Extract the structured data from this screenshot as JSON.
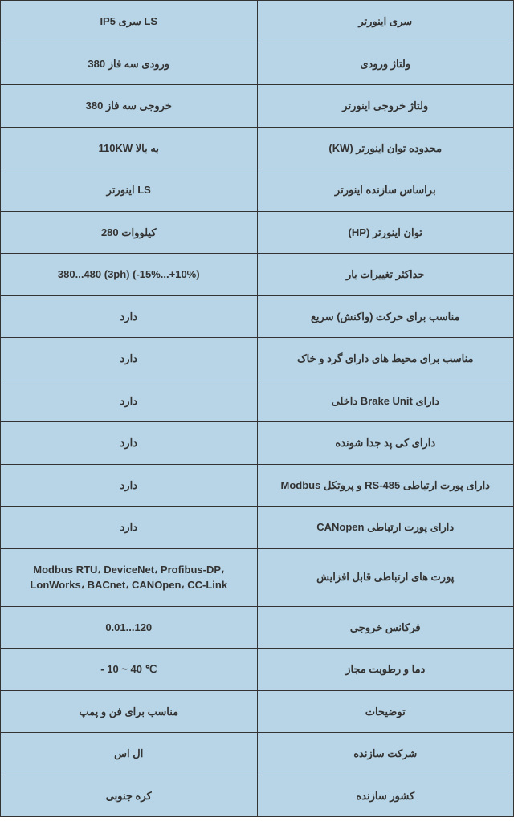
{
  "table": {
    "background_color": "#b7d5e7",
    "border_color": "#333333",
    "text_color": "#333333",
    "font_size": 13,
    "rows": [
      {
        "label": "سری اینورتر",
        "value": "IP5 سری LS"
      },
      {
        "label": "ولتاژ ورودی",
        "value": "ورودی سه فاز 380"
      },
      {
        "label": "ولتاژ خروجی اینورتر",
        "value": "خروجی سه فاز 380"
      },
      {
        "label": "محدوده توان اینورتر (KW)",
        "value": "110KW به بالا"
      },
      {
        "label": "براساس سازنده اینورتر",
        "value": "اینورتر LS"
      },
      {
        "label": "توان اینورتر (HP)",
        "value": "کیلووات 280"
      },
      {
        "label": "حداکثر تغییرات بار",
        "value": "380...480 (3ph) (-15%...+10%)"
      },
      {
        "label": "مناسب برای حرکت (واکنش) سریع",
        "value": "دارد"
      },
      {
        "label": "مناسب برای محیط های دارای گرد و خاک",
        "value": "دارد"
      },
      {
        "label": "دارای Brake Unit داخلی",
        "value": "دارد"
      },
      {
        "label": "دارای کی پد جدا شونده",
        "value": "دارد"
      },
      {
        "label": "دارای پورت ارتباطی RS-485 و پروتکل Modbus",
        "value": "دارد"
      },
      {
        "label": "دارای پورت ارتباطی CANopen",
        "value": "دارد"
      },
      {
        "label": "پورت های ارتباطی قابل افزایش",
        "value": "Modbus RTU، DeviceNet، Profibus-DP، LonWorks، BACnet، CANOpen، CC-Link"
      },
      {
        "label": "فرکانس خروجی",
        "value": "0.01...120"
      },
      {
        "label": "دما و رطوبت مجاز",
        "value": "- 10 ~ 40 ℃"
      },
      {
        "label": "توضیحات",
        "value": "مناسب برای فن و پمپ"
      },
      {
        "label": "شرکت سازنده",
        "value": "ال اس"
      },
      {
        "label": "کشور سازنده",
        "value": "کره جنوبی"
      }
    ]
  }
}
